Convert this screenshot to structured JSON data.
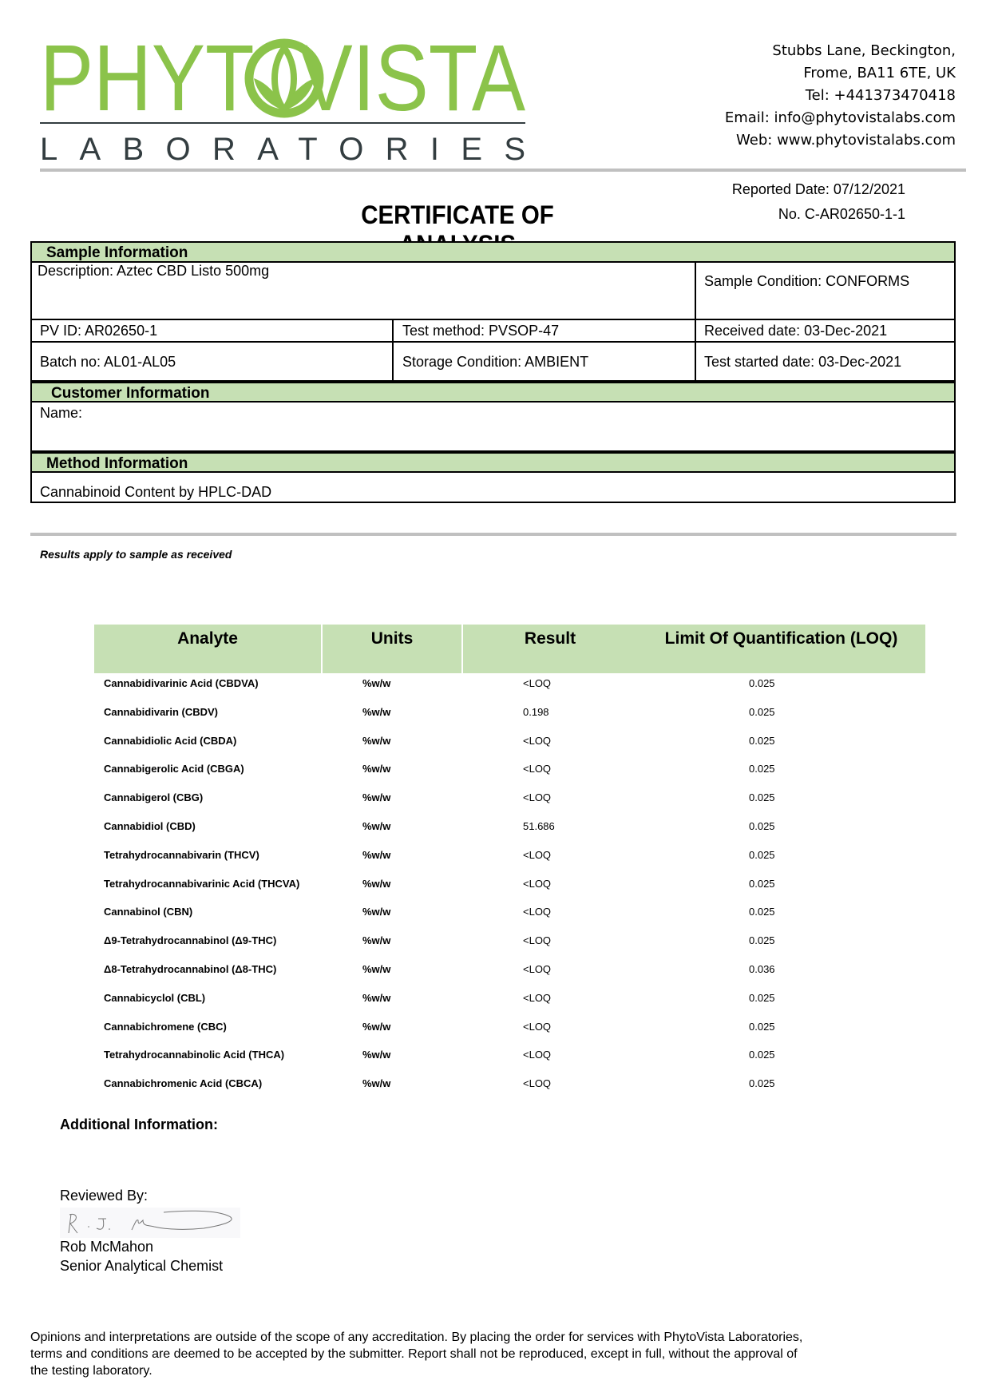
{
  "logo": {
    "name": "PHYTOVISTA",
    "subtitle": "LABORATORIES",
    "brand_color": "#8bc34a",
    "subtitle_color": "#333d40"
  },
  "address": {
    "line1": "Stubbs Lane, Beckington,",
    "line2": "Frome, BA11 6TE, UK",
    "tel": "Tel: +441373470418",
    "email": "Email: info@phytovistalabs.com",
    "web": "Web: www.phytovistalabs.com"
  },
  "report": {
    "title": "CERTIFICATE OF ANALYSIS",
    "reported_date": "Reported Date: 07/12/2021",
    "number": "No. C-AR02650-1-1"
  },
  "sample": {
    "header": "Sample Information",
    "description": "Description: Aztec CBD Listo 500mg",
    "condition": "Sample Condition: CONFORMS",
    "pv_id": "PV ID: AR02650-1",
    "test_method": "Test method: PVSOP-47",
    "received": "Received date: 03-Dec-2021",
    "batch": "Batch no: AL01-AL05",
    "storage": "Storage Condition: AMBIENT",
    "test_started": "Test started date: 03-Dec-2021"
  },
  "customer": {
    "header": "Customer Information",
    "name": "Name:"
  },
  "method": {
    "header": "Method Information",
    "value": "Cannabinoid Content by HPLC-DAD"
  },
  "note": "Results apply to sample as received",
  "results": {
    "header_color": "#c6e0b4",
    "columns": [
      "Analyte",
      "Units",
      "Result",
      "Limit Of Quantification (LOQ)"
    ],
    "rows": [
      [
        "Cannabidivarinic Acid (CBDVA)",
        "%w/w",
        "<LOQ",
        "0.025"
      ],
      [
        "Cannabidivarin (CBDV)",
        "%w/w",
        "0.198",
        "0.025"
      ],
      [
        "Cannabidiolic Acid (CBDA)",
        "%w/w",
        "<LOQ",
        "0.025"
      ],
      [
        "Cannabigerolic Acid (CBGA)",
        "%w/w",
        "<LOQ",
        "0.025"
      ],
      [
        "Cannabigerol (CBG)",
        "%w/w",
        "<LOQ",
        "0.025"
      ],
      [
        "Cannabidiol (CBD)",
        "%w/w",
        "51.686",
        "0.025"
      ],
      [
        "Tetrahydrocannabivarin (THCV)",
        "%w/w",
        "<LOQ",
        "0.025"
      ],
      [
        "Tetrahydrocannabivarinic Acid (THCVA)",
        "%w/w",
        "<LOQ",
        "0.025"
      ],
      [
        "Cannabinol (CBN)",
        "%w/w",
        "<LOQ",
        "0.025"
      ],
      [
        "Δ9-Tetrahydrocannabinol (Δ9-THC)",
        "%w/w",
        "<LOQ",
        "0.025"
      ],
      [
        "Δ8-Tetrahydrocannabinol (Δ8-THC)",
        "%w/w",
        "<LOQ",
        "0.036"
      ],
      [
        "Cannabicyclol (CBL)",
        "%w/w",
        "<LOQ",
        "0.025"
      ],
      [
        "Cannabichromene (CBC)",
        "%w/w",
        "<LOQ",
        "0.025"
      ],
      [
        "Tetrahydrocannabinolic Acid (THCA)",
        "%w/w",
        "<LOQ",
        "0.025"
      ],
      [
        "Cannabichromenic Acid (CBCA)",
        "%w/w",
        "<LOQ",
        "0.025"
      ]
    ]
  },
  "additional": "Additional Information:",
  "review": {
    "label": "Reviewed By:",
    "name": "Rob McMahon",
    "title": "Senior Analytical Chemist",
    "signature": "R. J. McMahon"
  },
  "footer": {
    "line1": "Opinions and interpretations are outside of the scope of any accreditation. By placing the order for services with PhytoVista Laboratories,",
    "line2": "terms and conditions are deemed to be accepted by the submitter. Report shall not be reproduced, except in full, without the approval of",
    "line3": "the testing laboratory."
  }
}
